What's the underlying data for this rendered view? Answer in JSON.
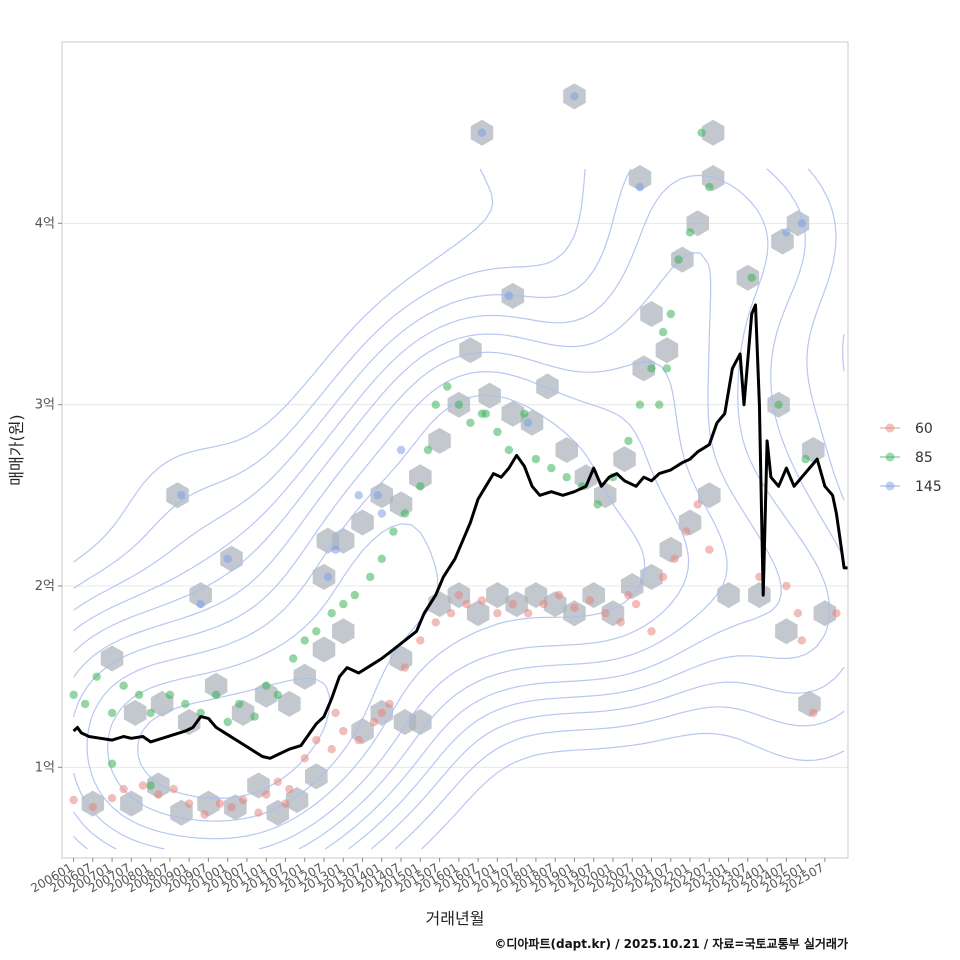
{
  "chart_data": {
    "type": "scatter",
    "title": "",
    "xlabel": "거래년월",
    "ylabel": "매매가(원)",
    "caption": "©디아파트(dapt.kr) / 2025.10.21 / 자료=국토교통부 실거래가",
    "x_range": [
      2005.7,
      2026.1
    ],
    "ylim": [
      0.5,
      5.0
    ],
    "y_ticks": [
      {
        "value": 1,
        "label": "1억"
      },
      {
        "value": 2,
        "label": "2억"
      },
      {
        "value": 3,
        "label": "3억"
      },
      {
        "value": 4,
        "label": "4억"
      }
    ],
    "x_ticks": [
      "200601",
      "200607",
      "200701",
      "200707",
      "200801",
      "200807",
      "200901",
      "200907",
      "201001",
      "201007",
      "201101",
      "201107",
      "201201",
      "201207",
      "201301",
      "201307",
      "201401",
      "201407",
      "201501",
      "201507",
      "201601",
      "201607",
      "201701",
      "201707",
      "201801",
      "201807",
      "201901",
      "201907",
      "202001",
      "202007",
      "202101",
      "202107",
      "202201",
      "202207",
      "202301",
      "202307",
      "202401",
      "202407",
      "202501",
      "202507"
    ],
    "legend": {
      "position": "right",
      "entries": [
        {
          "name": "60",
          "color": "#e8857f"
        },
        {
          "name": "85",
          "color": "#3db25a"
        },
        {
          "name": "145",
          "color": "#7d9fe8"
        }
      ]
    },
    "colors": {
      "hex": "#aab3bb",
      "contour": "#aabdf0",
      "line": "#000000",
      "grid": "#e8e8e8",
      "frame": "#c8c8c8"
    },
    "series": [
      {
        "name": "60",
        "points": [
          [
            2006.0,
            0.82
          ],
          [
            2006.5,
            0.78
          ],
          [
            2007.0,
            0.83
          ],
          [
            2007.3,
            0.88
          ],
          [
            2007.8,
            0.9
          ],
          [
            2008.2,
            0.85
          ],
          [
            2008.6,
            0.88
          ],
          [
            2009.0,
            0.8
          ],
          [
            2009.4,
            0.74
          ],
          [
            2009.8,
            0.8
          ],
          [
            2010.1,
            0.78
          ],
          [
            2010.4,
            0.82
          ],
          [
            2010.8,
            0.75
          ],
          [
            2011.0,
            0.85
          ],
          [
            2011.3,
            0.92
          ],
          [
            2011.6,
            0.88
          ],
          [
            2012.0,
            1.05
          ],
          [
            2012.3,
            1.15
          ],
          [
            2012.7,
            1.1
          ],
          [
            2013.0,
            1.2
          ],
          [
            2013.4,
            1.15
          ],
          [
            2013.8,
            1.25
          ],
          [
            2014.2,
            1.35
          ],
          [
            2014.6,
            1.55
          ],
          [
            2015.0,
            1.7
          ],
          [
            2015.4,
            1.8
          ],
          [
            2015.8,
            1.85
          ],
          [
            2016.2,
            1.9
          ],
          [
            2016.6,
            1.92
          ],
          [
            2017.0,
            1.85
          ],
          [
            2017.4,
            1.9
          ],
          [
            2017.8,
            1.85
          ],
          [
            2018.2,
            1.9
          ],
          [
            2018.6,
            1.95
          ],
          [
            2019.0,
            1.88
          ],
          [
            2019.4,
            1.92
          ],
          [
            2019.8,
            1.85
          ],
          [
            2020.2,
            1.8
          ],
          [
            2020.6,
            1.9
          ],
          [
            2021.0,
            1.75
          ],
          [
            2021.3,
            2.05
          ],
          [
            2021.6,
            2.15
          ],
          [
            2021.9,
            2.3
          ],
          [
            2022.2,
            2.45
          ],
          [
            2022.5,
            2.2
          ],
          [
            2023.8,
            2.05
          ],
          [
            2024.5,
            2.0
          ],
          [
            2024.8,
            1.85
          ],
          [
            2024.9,
            1.7
          ],
          [
            2025.2,
            1.3
          ],
          [
            2025.8,
            1.85
          ],
          [
            2011.5,
            0.8
          ],
          [
            2012.8,
            1.3
          ],
          [
            2014.0,
            1.3
          ],
          [
            2016.0,
            1.95
          ],
          [
            2020.4,
            1.95
          ]
        ]
      },
      {
        "name": "85",
        "points": [
          [
            2006.0,
            1.4
          ],
          [
            2006.3,
            1.35
          ],
          [
            2006.6,
            1.5
          ],
          [
            2007.0,
            1.3
          ],
          [
            2007.3,
            1.45
          ],
          [
            2007.7,
            1.4
          ],
          [
            2008.0,
            1.3
          ],
          [
            2008.5,
            1.4
          ],
          [
            2008.9,
            1.35
          ],
          [
            2009.3,
            1.3
          ],
          [
            2009.7,
            1.4
          ],
          [
            2010.0,
            1.25
          ],
          [
            2010.3,
            1.35
          ],
          [
            2010.7,
            1.28
          ],
          [
            2011.0,
            1.45
          ],
          [
            2011.3,
            1.4
          ],
          [
            2011.7,
            1.6
          ],
          [
            2012.0,
            1.7
          ],
          [
            2012.3,
            1.75
          ],
          [
            2012.7,
            1.85
          ],
          [
            2013.0,
            1.9
          ],
          [
            2013.3,
            1.95
          ],
          [
            2013.7,
            2.05
          ],
          [
            2014.0,
            2.15
          ],
          [
            2014.3,
            2.3
          ],
          [
            2014.6,
            2.4
          ],
          [
            2015.0,
            2.55
          ],
          [
            2015.2,
            2.75
          ],
          [
            2015.4,
            3.0
          ],
          [
            2015.7,
            3.1
          ],
          [
            2016.0,
            3.0
          ],
          [
            2016.3,
            2.9
          ],
          [
            2016.7,
            2.95
          ],
          [
            2017.0,
            2.85
          ],
          [
            2017.3,
            2.75
          ],
          [
            2017.7,
            2.95
          ],
          [
            2018.0,
            2.7
          ],
          [
            2018.4,
            2.65
          ],
          [
            2018.8,
            2.6
          ],
          [
            2019.2,
            2.55
          ],
          [
            2019.6,
            2.45
          ],
          [
            2020.0,
            2.6
          ],
          [
            2020.4,
            2.8
          ],
          [
            2020.7,
            3.0
          ],
          [
            2021.0,
            3.2
          ],
          [
            2021.3,
            3.4
          ],
          [
            2021.5,
            3.5
          ],
          [
            2021.7,
            3.8
          ],
          [
            2022.0,
            3.95
          ],
          [
            2022.3,
            4.5
          ],
          [
            2022.5,
            4.2
          ],
          [
            2023.6,
            3.7
          ],
          [
            2024.3,
            3.0
          ],
          [
            2025.0,
            2.7
          ],
          [
            2007.0,
            1.02
          ],
          [
            2008.0,
            0.9
          ],
          [
            2021.2,
            3.0
          ],
          [
            2021.4,
            3.2
          ],
          [
            2016.6,
            2.95
          ]
        ]
      },
      {
        "name": "145",
        "points": [
          [
            2008.8,
            2.5
          ],
          [
            2009.3,
            1.9
          ],
          [
            2010.0,
            2.15
          ],
          [
            2012.6,
            2.05
          ],
          [
            2012.8,
            2.2
          ],
          [
            2013.4,
            2.5
          ],
          [
            2014.0,
            2.4
          ],
          [
            2014.5,
            2.75
          ],
          [
            2016.6,
            4.5
          ],
          [
            2017.3,
            3.6
          ],
          [
            2019.0,
            4.7
          ],
          [
            2020.7,
            4.2
          ],
          [
            2024.5,
            3.95
          ],
          [
            2024.9,
            4.0
          ],
          [
            2017.8,
            2.9
          ],
          [
            2013.9,
            2.5
          ]
        ]
      }
    ],
    "price_line": [
      [
        2006.0,
        1.2
      ],
      [
        2006.1,
        1.22
      ],
      [
        2006.2,
        1.19
      ],
      [
        2006.4,
        1.17
      ],
      [
        2006.7,
        1.16
      ],
      [
        2007.0,
        1.15
      ],
      [
        2007.3,
        1.17
      ],
      [
        2007.5,
        1.16
      ],
      [
        2007.8,
        1.17
      ],
      [
        2008.0,
        1.14
      ],
      [
        2008.3,
        1.16
      ],
      [
        2008.6,
        1.18
      ],
      [
        2008.9,
        1.2
      ],
      [
        2009.1,
        1.22
      ],
      [
        2009.3,
        1.28
      ],
      [
        2009.5,
        1.27
      ],
      [
        2009.7,
        1.22
      ],
      [
        2010.0,
        1.18
      ],
      [
        2010.3,
        1.14
      ],
      [
        2010.6,
        1.1
      ],
      [
        2010.9,
        1.06
      ],
      [
        2011.1,
        1.05
      ],
      [
        2011.3,
        1.07
      ],
      [
        2011.6,
        1.1
      ],
      [
        2011.9,
        1.12
      ],
      [
        2012.1,
        1.18
      ],
      [
        2012.3,
        1.24
      ],
      [
        2012.5,
        1.28
      ],
      [
        2012.7,
        1.38
      ],
      [
        2012.9,
        1.5
      ],
      [
        2013.1,
        1.55
      ],
      [
        2013.4,
        1.52
      ],
      [
        2013.7,
        1.56
      ],
      [
        2014.0,
        1.6
      ],
      [
        2014.3,
        1.65
      ],
      [
        2014.6,
        1.7
      ],
      [
        2014.9,
        1.75
      ],
      [
        2015.1,
        1.85
      ],
      [
        2015.4,
        1.95
      ],
      [
        2015.6,
        2.05
      ],
      [
        2015.9,
        2.15
      ],
      [
        2016.1,
        2.25
      ],
      [
        2016.3,
        2.35
      ],
      [
        2016.5,
        2.48
      ],
      [
        2016.7,
        2.55
      ],
      [
        2016.9,
        2.62
      ],
      [
        2017.1,
        2.6
      ],
      [
        2017.3,
        2.65
      ],
      [
        2017.5,
        2.72
      ],
      [
        2017.7,
        2.66
      ],
      [
        2017.9,
        2.55
      ],
      [
        2018.1,
        2.5
      ],
      [
        2018.4,
        2.52
      ],
      [
        2018.7,
        2.5
      ],
      [
        2019.0,
        2.52
      ],
      [
        2019.3,
        2.55
      ],
      [
        2019.5,
        2.65
      ],
      [
        2019.7,
        2.55
      ],
      [
        2019.9,
        2.6
      ],
      [
        2020.1,
        2.62
      ],
      [
        2020.3,
        2.58
      ],
      [
        2020.6,
        2.55
      ],
      [
        2020.8,
        2.6
      ],
      [
        2021.0,
        2.58
      ],
      [
        2021.2,
        2.62
      ],
      [
        2021.5,
        2.64
      ],
      [
        2021.8,
        2.68
      ],
      [
        2022.0,
        2.7
      ],
      [
        2022.2,
        2.74
      ],
      [
        2022.5,
        2.78
      ],
      [
        2022.7,
        2.9
      ],
      [
        2022.9,
        2.95
      ],
      [
        2023.1,
        3.2
      ],
      [
        2023.3,
        3.28
      ],
      [
        2023.4,
        3.0
      ],
      [
        2023.6,
        3.5
      ],
      [
        2023.7,
        3.55
      ],
      [
        2023.8,
        3.0
      ],
      [
        2023.9,
        1.95
      ],
      [
        2024.0,
        2.8
      ],
      [
        2024.1,
        2.6
      ],
      [
        2024.3,
        2.55
      ],
      [
        2024.5,
        2.65
      ],
      [
        2024.7,
        2.55
      ],
      [
        2024.9,
        2.6
      ],
      [
        2025.1,
        2.65
      ],
      [
        2025.3,
        2.7
      ],
      [
        2025.5,
        2.55
      ],
      [
        2025.7,
        2.5
      ],
      [
        2025.8,
        2.4
      ],
      [
        2025.9,
        2.25
      ],
      [
        2026.0,
        2.1
      ],
      [
        2026.1,
        2.1
      ]
    ],
    "hexbins": [
      [
        2006.5,
        0.8
      ],
      [
        2007.5,
        0.8
      ],
      [
        2008.2,
        0.9
      ],
      [
        2008.8,
        0.75
      ],
      [
        2009.5,
        0.8
      ],
      [
        2010.2,
        0.78
      ],
      [
        2010.8,
        0.9
      ],
      [
        2011.3,
        0.75
      ],
      [
        2011.8,
        0.82
      ],
      [
        2012.3,
        0.95
      ],
      [
        2007.0,
        1.6
      ],
      [
        2007.6,
        1.3
      ],
      [
        2008.3,
        1.35
      ],
      [
        2009.0,
        1.25
      ],
      [
        2009.7,
        1.45
      ],
      [
        2010.4,
        1.3
      ],
      [
        2011.0,
        1.4
      ],
      [
        2011.6,
        1.35
      ],
      [
        2012.0,
        1.5
      ],
      [
        2012.5,
        1.65
      ],
      [
        2013.0,
        1.75
      ],
      [
        2013.5,
        1.2
      ],
      [
        2014.0,
        1.3
      ],
      [
        2014.5,
        1.6
      ],
      [
        2015.0,
        1.25
      ],
      [
        2015.5,
        1.9
      ],
      [
        2016.0,
        1.95
      ],
      [
        2016.5,
        1.85
      ],
      [
        2017.0,
        1.95
      ],
      [
        2017.5,
        1.9
      ],
      [
        2018.0,
        1.95
      ],
      [
        2018.5,
        1.9
      ],
      [
        2019.0,
        1.85
      ],
      [
        2019.5,
        1.95
      ],
      [
        2020.0,
        1.85
      ],
      [
        2020.5,
        2.0
      ],
      [
        2021.0,
        2.05
      ],
      [
        2021.5,
        2.2
      ],
      [
        2022.0,
        2.35
      ],
      [
        2022.5,
        2.5
      ],
      [
        2012.5,
        2.05
      ],
      [
        2013.0,
        2.25
      ],
      [
        2013.5,
        2.35
      ],
      [
        2014.0,
        2.5
      ],
      [
        2014.5,
        2.45
      ],
      [
        2015.0,
        2.6
      ],
      [
        2015.5,
        2.8
      ],
      [
        2016.0,
        3.0
      ],
      [
        2016.3,
        3.3
      ],
      [
        2016.8,
        3.05
      ],
      [
        2017.4,
        2.95
      ],
      [
        2017.9,
        2.9
      ],
      [
        2018.3,
        3.1
      ],
      [
        2018.8,
        2.75
      ],
      [
        2019.3,
        2.6
      ],
      [
        2019.8,
        2.5
      ],
      [
        2020.3,
        2.7
      ],
      [
        2020.8,
        3.2
      ],
      [
        2021.0,
        3.5
      ],
      [
        2021.4,
        3.3
      ],
      [
        2021.8,
        3.8
      ],
      [
        2022.2,
        4.0
      ],
      [
        2022.6,
        4.5
      ],
      [
        2008.7,
        2.5
      ],
      [
        2009.3,
        1.95
      ],
      [
        2010.1,
        2.15
      ],
      [
        2016.6,
        4.5
      ],
      [
        2017.4,
        3.6
      ],
      [
        2019.0,
        4.7
      ],
      [
        2020.7,
        4.25
      ],
      [
        2022.6,
        4.25
      ],
      [
        2023.5,
        3.7
      ],
      [
        2024.4,
        3.9
      ],
      [
        2024.8,
        4.0
      ],
      [
        2024.3,
        3.0
      ],
      [
        2025.2,
        2.75
      ],
      [
        2025.5,
        1.85
      ],
      [
        2024.5,
        1.75
      ],
      [
        2023.8,
        1.95
      ],
      [
        2023.0,
        1.95
      ],
      [
        2025.1,
        1.35
      ],
      [
        2014.6,
        1.25
      ],
      [
        2012.6,
        2.25
      ]
    ]
  }
}
